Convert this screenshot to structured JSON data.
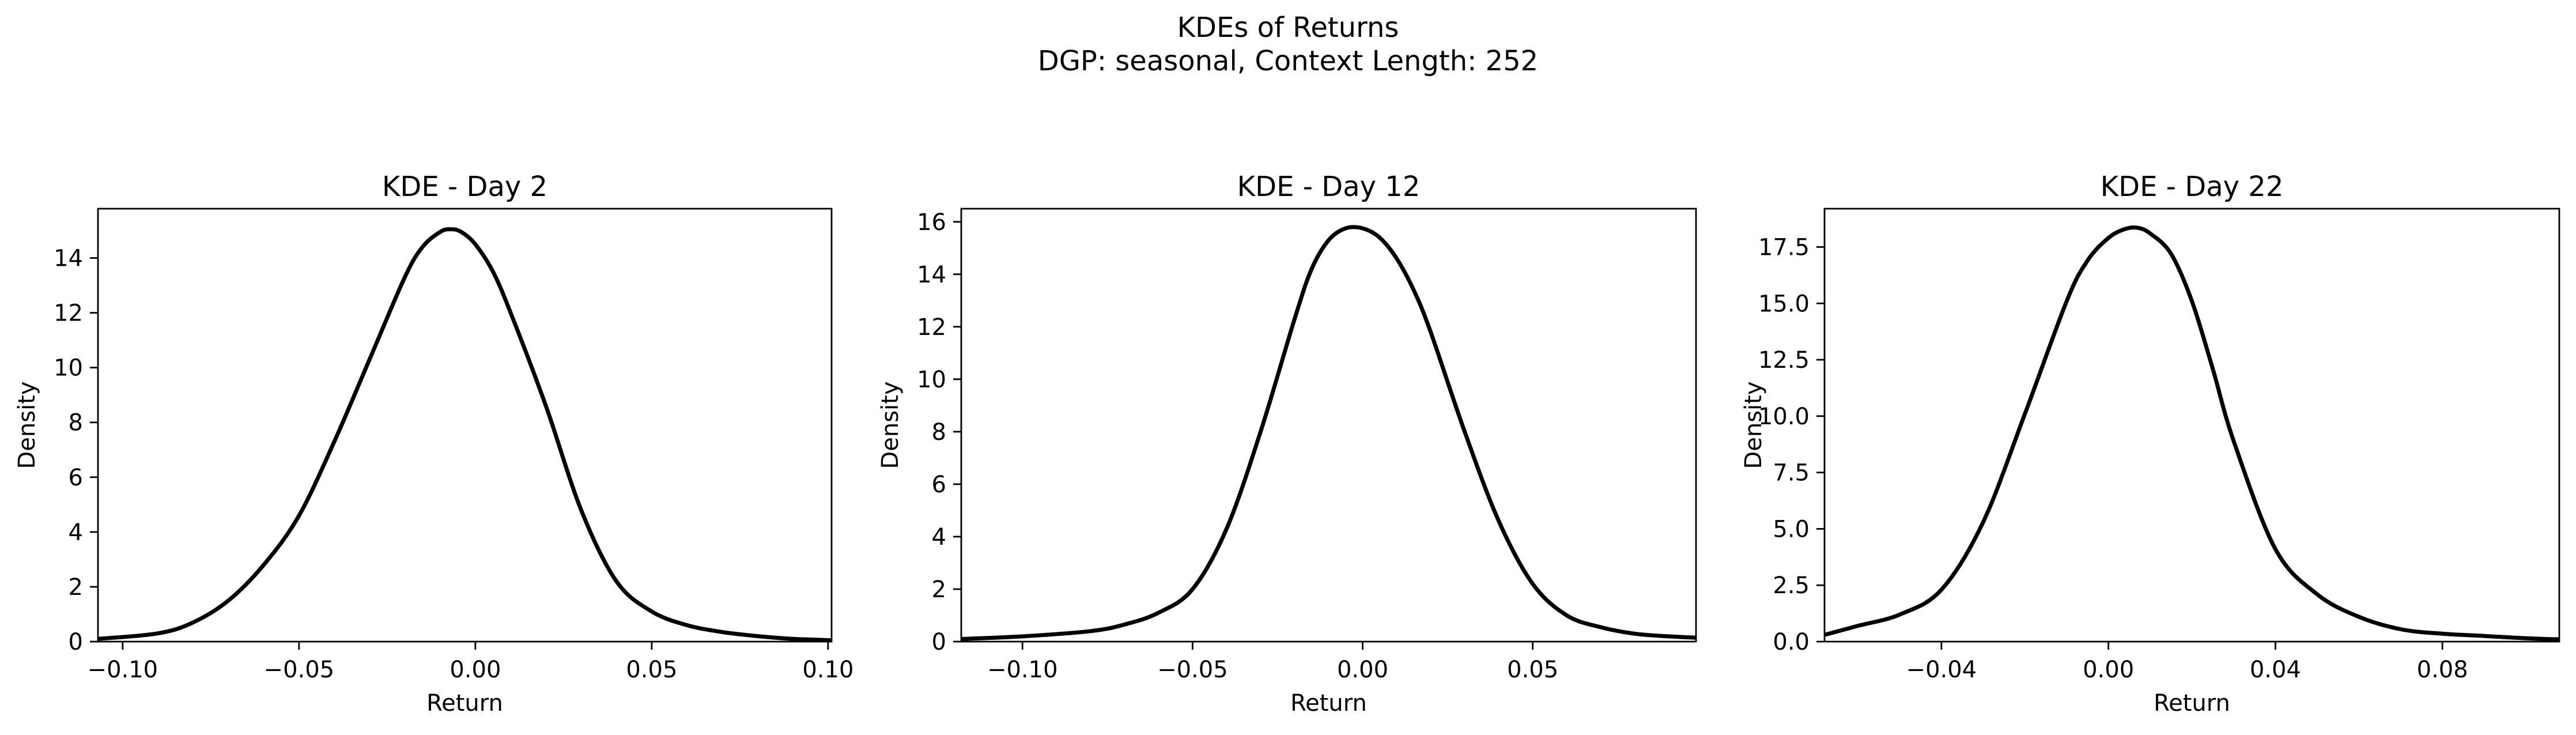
{
  "figure": {
    "suptitle_line1": "KDEs of Returns",
    "suptitle_line2": "DGP: seasonal, Context Length: 252"
  },
  "chart_data": [
    {
      "type": "line",
      "title": "KDE - Day 2",
      "xlabel": "Return",
      "ylabel": "Density",
      "xlim": [
        -0.107,
        0.101
      ],
      "ylim": [
        0,
        15.8
      ],
      "xticks": [
        -0.1,
        -0.05,
        0.0,
        0.05,
        0.1
      ],
      "xtick_labels": [
        "−0.10",
        "−0.05",
        "0.00",
        "0.05",
        "0.10"
      ],
      "yticks": [
        0,
        2,
        4,
        6,
        8,
        10,
        12,
        14
      ],
      "ytick_labels": [
        "0",
        "2",
        "4",
        "6",
        "8",
        "10",
        "12",
        "14"
      ],
      "grid": false,
      "series": [
        {
          "color": "#000000",
          "x": [
            -0.107,
            -0.09,
            -0.08,
            -0.07,
            -0.06,
            -0.05,
            -0.04,
            -0.03,
            -0.02,
            -0.015,
            -0.01,
            -0.007,
            -0.004,
            0.0,
            0.005,
            0.01,
            0.02,
            0.03,
            0.04,
            0.05,
            0.06,
            0.07,
            0.08,
            0.09,
            0.101
          ],
          "y": [
            0.1,
            0.3,
            0.7,
            1.5,
            2.8,
            4.6,
            7.3,
            10.3,
            13.3,
            14.4,
            14.95,
            15.05,
            14.95,
            14.5,
            13.5,
            12.0,
            8.6,
            4.8,
            2.2,
            1.1,
            0.6,
            0.35,
            0.2,
            0.1,
            0.05
          ]
        }
      ]
    },
    {
      "type": "line",
      "title": "KDE - Day 12",
      "xlabel": "Return",
      "ylabel": "Density",
      "xlim": [
        -0.118,
        0.098
      ],
      "ylim": [
        0,
        16.5
      ],
      "xticks": [
        -0.1,
        -0.05,
        0.0,
        0.05
      ],
      "xtick_labels": [
        "−0.10",
        "−0.05",
        "0.00",
        "0.05"
      ],
      "yticks": [
        0,
        2,
        4,
        6,
        8,
        10,
        12,
        14,
        16
      ],
      "ytick_labels": [
        "0",
        "2",
        "4",
        "6",
        "8",
        "10",
        "12",
        "14",
        "16"
      ],
      "grid": false,
      "series": [
        {
          "color": "#000000",
          "x": [
            -0.118,
            -0.1,
            -0.08,
            -0.07,
            -0.06,
            -0.05,
            -0.04,
            -0.03,
            -0.02,
            -0.015,
            -0.01,
            -0.005,
            0.0,
            0.005,
            0.01,
            0.015,
            0.02,
            0.03,
            0.04,
            0.05,
            0.06,
            0.07,
            0.08,
            0.09,
            0.098
          ],
          "y": [
            0.1,
            0.2,
            0.4,
            0.65,
            1.1,
            2.0,
            4.3,
            8.0,
            12.3,
            14.2,
            15.3,
            15.75,
            15.75,
            15.4,
            14.6,
            13.4,
            11.8,
            8.0,
            4.6,
            2.2,
            1.0,
            0.55,
            0.3,
            0.2,
            0.15
          ]
        }
      ]
    },
    {
      "type": "line",
      "title": "KDE - Day 22",
      "xlabel": "Return",
      "ylabel": "Density",
      "xlim": [
        -0.068,
        0.108
      ],
      "ylim": [
        0,
        19.2
      ],
      "xticks": [
        -0.04,
        0.0,
        0.04,
        0.08
      ],
      "xtick_labels": [
        "−0.04",
        "0.00",
        "0.04",
        "0.08"
      ],
      "yticks": [
        0,
        2.5,
        5,
        7.5,
        10,
        12.5,
        15,
        17.5
      ],
      "ytick_labels": [
        "0.0",
        "2.5",
        "5.0",
        "7.5",
        "10.0",
        "12.5",
        "15.0",
        "17.5"
      ],
      "grid": false,
      "series": [
        {
          "color": "#000000",
          "x": [
            -0.068,
            -0.06,
            -0.05,
            -0.04,
            -0.03,
            -0.02,
            -0.01,
            -0.005,
            0.0,
            0.004,
            0.007,
            0.01,
            0.015,
            0.02,
            0.025,
            0.03,
            0.04,
            0.05,
            0.06,
            0.07,
            0.08,
            0.09,
            0.1,
            0.108
          ],
          "y": [
            0.3,
            0.7,
            1.2,
            2.3,
            5.3,
            10.1,
            15.1,
            16.9,
            17.9,
            18.3,
            18.35,
            18.1,
            17.2,
            15.1,
            12.1,
            8.9,
            4.1,
            2.1,
            1.1,
            0.55,
            0.35,
            0.25,
            0.15,
            0.1
          ]
        }
      ]
    }
  ]
}
